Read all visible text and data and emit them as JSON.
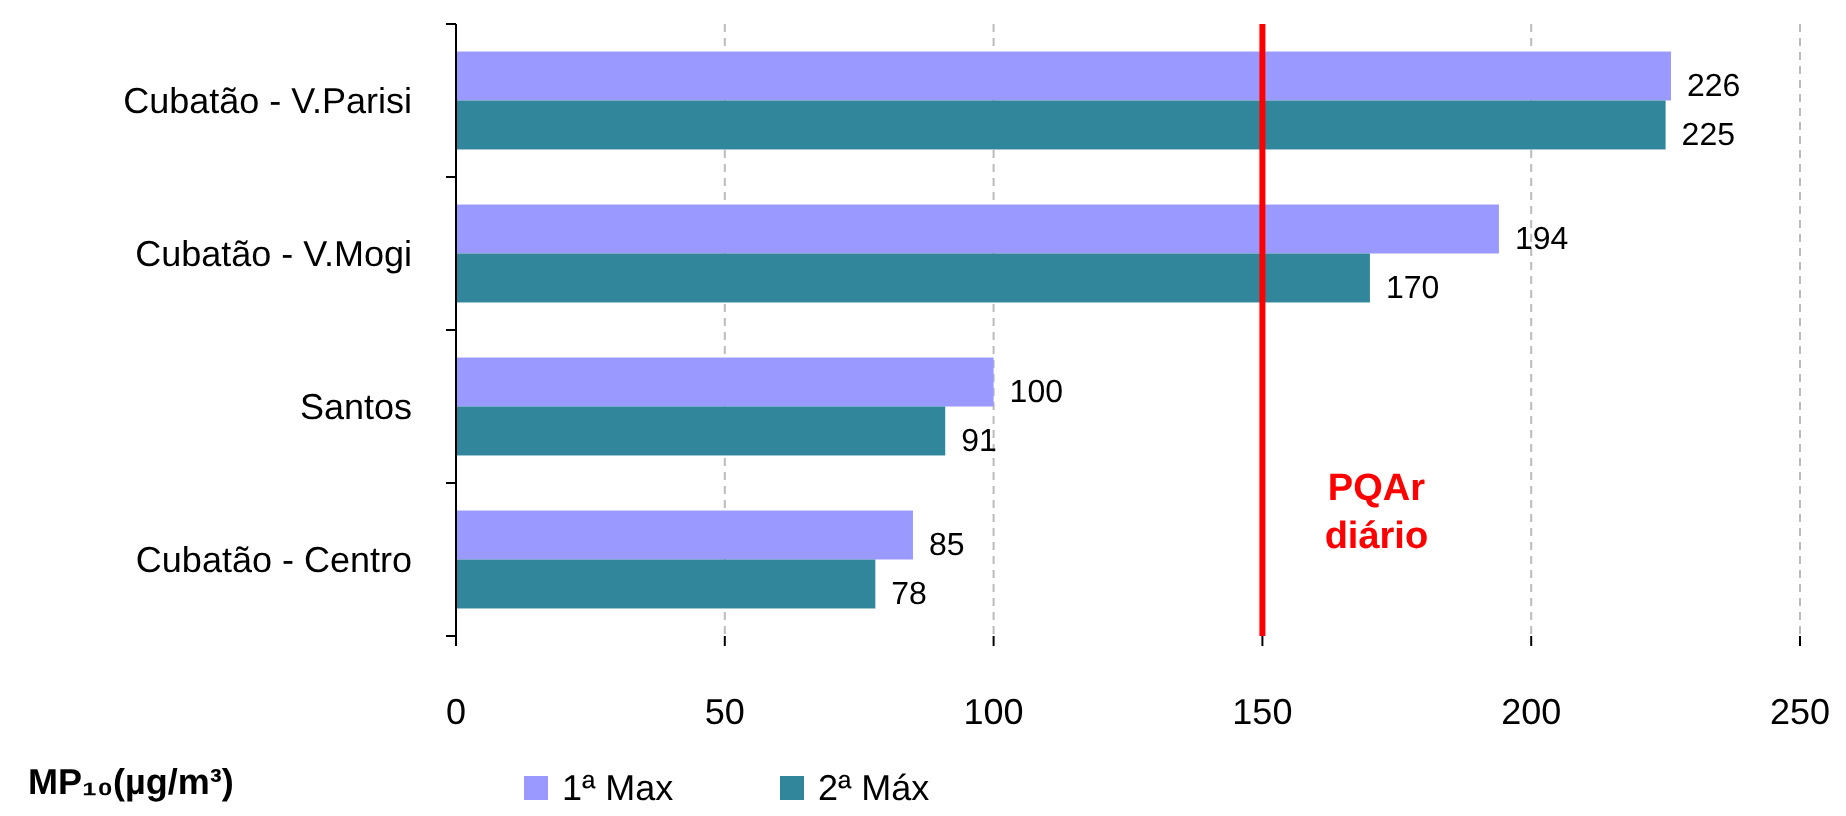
{
  "chart_data": {
    "type": "bar",
    "orientation": "horizontal",
    "xlabel": "MP₁₀(µg/m³)",
    "categories": [
      "Cubatão - V.Parisi",
      "Cubatão - V.Mogi",
      "Santos",
      "Cubatão - Centro"
    ],
    "series": [
      {
        "name": "1ª Max",
        "color": "#9999ff",
        "values": [
          226,
          194,
          100,
          85
        ]
      },
      {
        "name": "2ª Máx",
        "color": "#31869b",
        "values": [
          225,
          170,
          91,
          78
        ]
      }
    ],
    "xlim": [
      0,
      250
    ],
    "xticks": [
      0,
      50,
      100,
      150,
      200,
      250
    ],
    "grid": "x",
    "legend": "bottom",
    "data_labels": true,
    "ref_lines": [
      {
        "axis": "x",
        "value": 150,
        "label": "PQAr diário",
        "color": "#ff0000"
      }
    ]
  }
}
